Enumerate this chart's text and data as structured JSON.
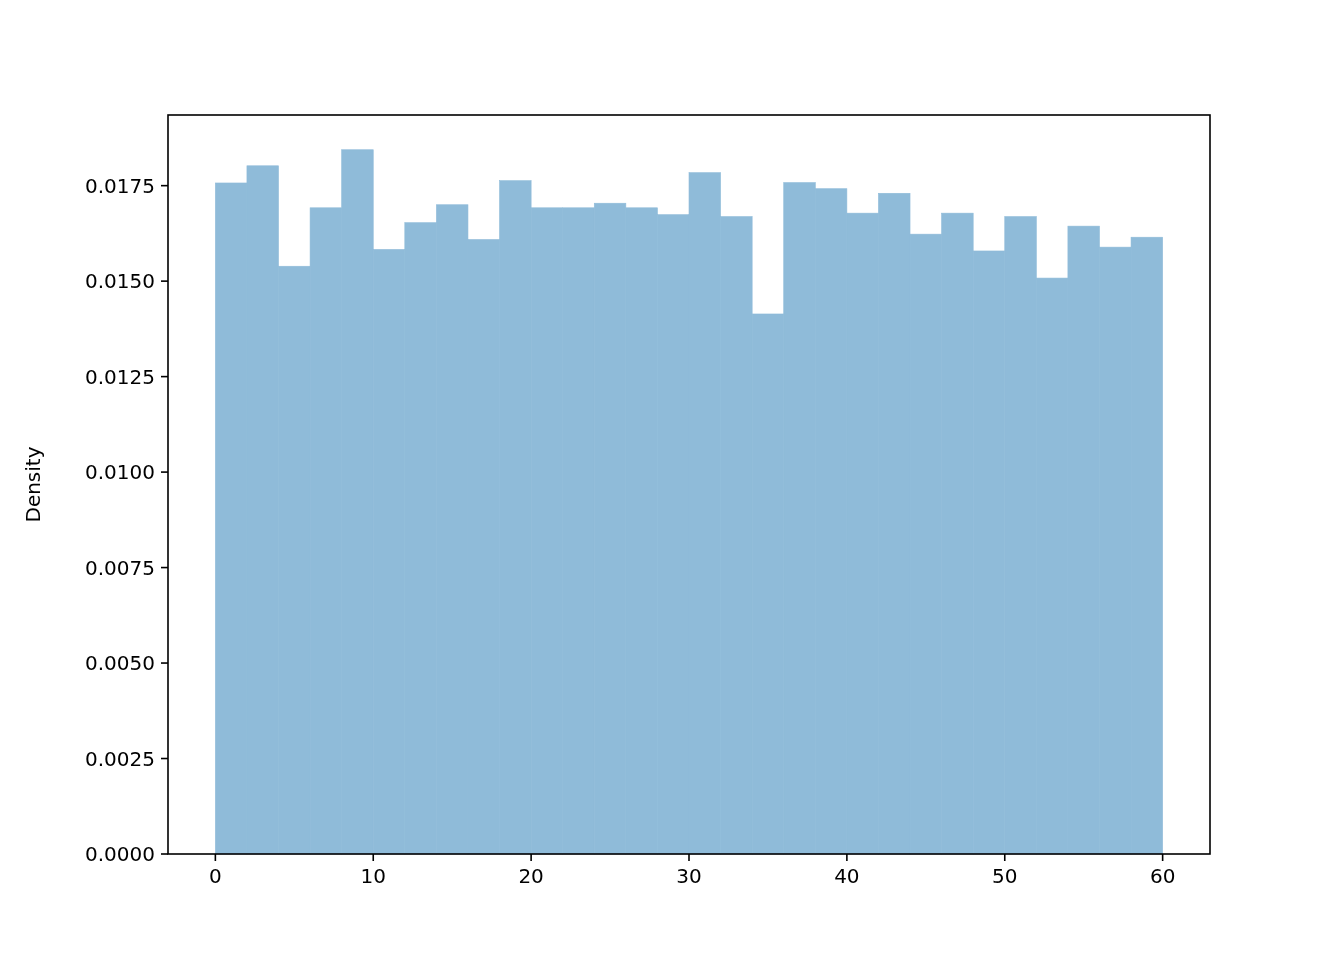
{
  "chart_data": {
    "type": "histogram",
    "ylabel": "Density",
    "color": "#8fbbd9",
    "bins": [
      0,
      2,
      4,
      6,
      8,
      10,
      12,
      14,
      16,
      18,
      20,
      22,
      24,
      26,
      28,
      30,
      32,
      34,
      36,
      38,
      40,
      42,
      44,
      46,
      48,
      50,
      52,
      54,
      56,
      58,
      60
    ],
    "values": [
      0.01757,
      0.01802,
      0.01539,
      0.01692,
      0.01844,
      0.01583,
      0.01653,
      0.017,
      0.01609,
      0.01763,
      0.01692,
      0.01692,
      0.01704,
      0.01692,
      0.01674,
      0.01784,
      0.01669,
      0.01414,
      0.01758,
      0.01742,
      0.01678,
      0.0173,
      0.01623,
      0.01678,
      0.01579,
      0.01669,
      0.01508,
      0.01644,
      0.01589,
      0.01615
    ],
    "xlim": [
      -3,
      63
    ],
    "ylim": [
      0,
      0.01935
    ],
    "xticks": [
      0,
      10,
      20,
      30,
      40,
      50,
      60
    ],
    "yticks": [
      {
        "value": 0,
        "label": "0.0000"
      },
      {
        "value": 0.0025,
        "label": "0.0025"
      },
      {
        "value": 0.005,
        "label": "0.0050"
      },
      {
        "value": 0.0075,
        "label": "0.0075"
      },
      {
        "value": 0.01,
        "label": "0.0100"
      },
      {
        "value": 0.0125,
        "label": "0.0125"
      },
      {
        "value": 0.015,
        "label": "0.0150"
      },
      {
        "value": 0.0175,
        "label": "0.0175"
      }
    ],
    "grid": false
  }
}
